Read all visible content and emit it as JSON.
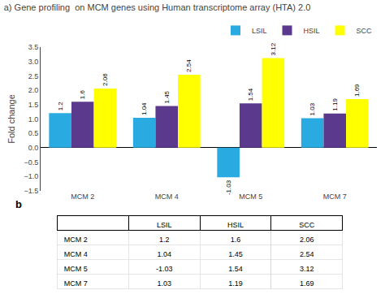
{
  "chart_data": [
    {
      "type": "bar",
      "title": "a) Gene profiling  on MCM genes using Human transcriptome array (HTA) 2.0",
      "categories": [
        "MCM 2",
        "MCM 4",
        "MCM 5",
        "MCM 7"
      ],
      "series": [
        {
          "name": "LSIL",
          "color": "#29ABE2",
          "values": [
            1.2,
            1.04,
            -1.03,
            1.03
          ]
        },
        {
          "name": "HSIL",
          "color": "#5B3A8E",
          "values": [
            1.6,
            1.45,
            1.54,
            1.19
          ]
        },
        {
          "name": "SCC",
          "color": "#FFFF00",
          "values": [
            2.06,
            2.54,
            3.12,
            1.69
          ]
        }
      ],
      "ylabel": "Fold change",
      "ylim": [
        -1.5,
        3.5
      ],
      "yticks": [
        {
          "value": -1.5,
          "label": "−1.5"
        },
        {
          "value": -1,
          "label": "−1.0"
        },
        {
          "value": -0.5,
          "label": "−0.5"
        },
        {
          "value": 0,
          "label": "0.0"
        },
        0.5,
        {
          "value": 1,
          "label": "1.0"
        },
        1.5,
        {
          "value": 2,
          "label": "2.0"
        },
        2.5,
        {
          "value": 3,
          "label": "3.0"
        },
        3.5
      ],
      "data_labels": true,
      "legend": "upper right",
      "grid": false
    },
    {
      "type": "table",
      "title": "b",
      "columns": [
        "LSIL",
        "HSIL",
        "SCC"
      ],
      "rows": [
        "MCM 2",
        "MCM 4",
        "MCM 5",
        "MCM 7"
      ],
      "values": [
        [
          1.2,
          1.6,
          2.06
        ],
        [
          1.04,
          1.45,
          2.54
        ],
        [
          -1.03,
          1.54,
          3.12
        ],
        [
          1.03,
          1.19,
          1.69
        ]
      ]
    }
  ]
}
